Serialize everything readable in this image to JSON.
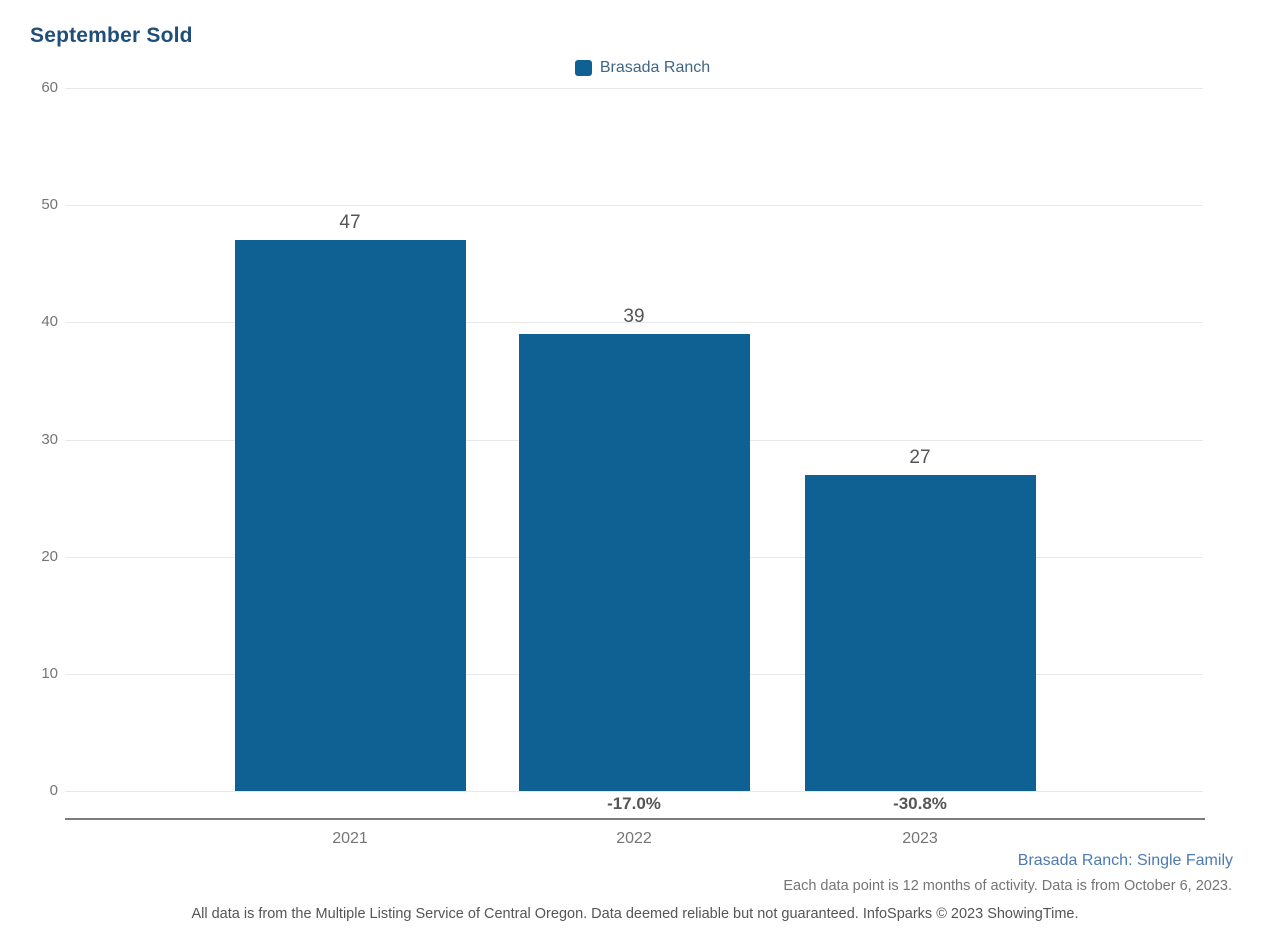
{
  "chart": {
    "title": "September Sold",
    "legend_label": "Brasada Ranch"
  },
  "chart_data": {
    "type": "bar",
    "title": "September Sold",
    "categories": [
      "2021",
      "2022",
      "2023"
    ],
    "series": [
      {
        "name": "Brasada Ranch",
        "values": [
          47,
          39,
          27
        ]
      }
    ],
    "value_labels": [
      "47",
      "39",
      "27"
    ],
    "pct_change_labels": [
      "",
      "-17.0%",
      "-30.8%"
    ],
    "ylim": [
      0,
      60
    ],
    "yticks": [
      0,
      10,
      20,
      30,
      40,
      50,
      60
    ],
    "grid": true,
    "legend_position": "top-center",
    "bar_color": "#0f6194"
  },
  "footnotes": {
    "series_note": "Brasada Ranch: Single Family",
    "data_note": "Each data point is 12 months of activity. Data is from October 6, 2023.",
    "disclaimer": "All data is from the Multiple Listing Service of Central Oregon. Data deemed reliable but not guaranteed. InfoSparks © 2023 ShowingTime."
  },
  "colors": {
    "bar": "#0f6194",
    "title": "#1f4e79",
    "legend_text": "#3e6687",
    "axis_tick_label": "#757575",
    "value_label": "#555555",
    "series_note": "#4d7ab2",
    "data_note": "#757575",
    "disclaimer": "#555555"
  }
}
